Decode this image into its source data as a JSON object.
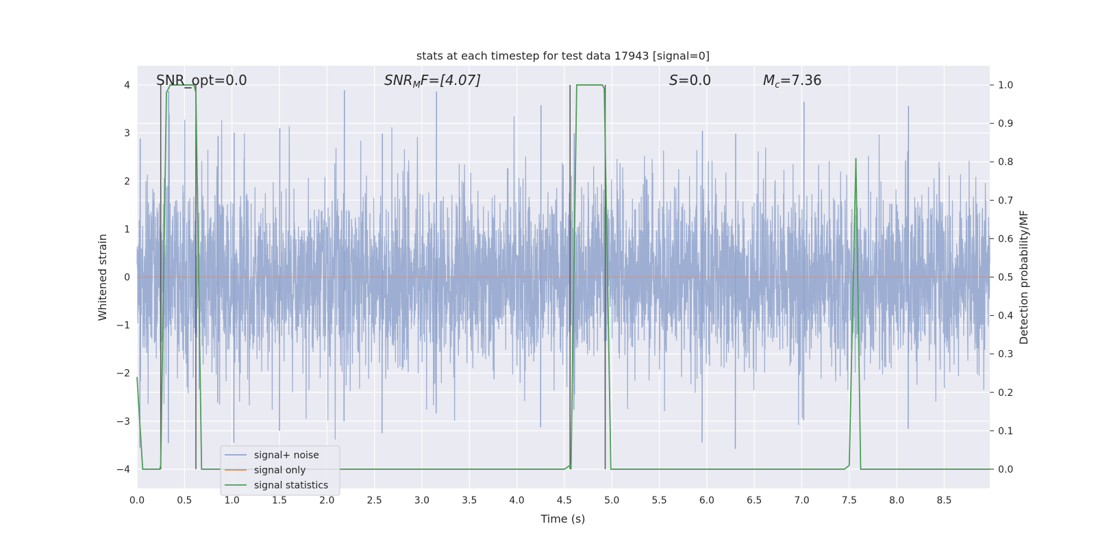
{
  "chart_data": {
    "type": "line",
    "title": "stats at each timestep for test data 17943 [signal=0]",
    "xlabel": "Time (s)",
    "ylabel_left": "Whitened strain",
    "ylabel_right": "Detection probability/MF",
    "xlim": [
      0.0,
      8.98
    ],
    "ylim_left": [
      -4.4,
      4.4
    ],
    "ylim_right": [
      -0.05,
      1.05
    ],
    "xticks": [
      0.0,
      0.5,
      1.0,
      1.5,
      2.0,
      2.5,
      3.0,
      3.5,
      4.0,
      4.5,
      5.0,
      5.5,
      6.0,
      6.5,
      7.0,
      7.5,
      8.0,
      8.5
    ],
    "xtick_labels": [
      "0.0",
      "0.5",
      "1.0",
      "1.5",
      "2.0",
      "2.5",
      "3.0",
      "3.5",
      "4.0",
      "4.5",
      "5.0",
      "5.5",
      "6.0",
      "6.5",
      "7.0",
      "7.5",
      "8.0",
      "8.5"
    ],
    "yticks_left": [
      -4,
      -3,
      -2,
      -1,
      0,
      1,
      2,
      3,
      4
    ],
    "ytick_labels_left": [
      "−4",
      "−3",
      "−2",
      "−1",
      "0",
      "1",
      "2",
      "3",
      "4"
    ],
    "yticks_right": [
      0.0,
      0.1,
      0.2,
      0.3,
      0.4,
      0.5,
      0.6,
      0.7,
      0.8,
      0.9,
      1.0
    ],
    "ytick_labels_right": [
      "0.0",
      "0.1",
      "0.2",
      "0.3",
      "0.4",
      "0.5",
      "0.6",
      "0.7",
      "0.8",
      "0.9",
      "1.0"
    ],
    "grid": true,
    "legend_position": "lower-left",
    "series": [
      {
        "name": "signal+ noise",
        "color": "#8fa3cc",
        "axis": "left",
        "description_kind": "whitened strain noise, amplitude within about ±4",
        "peak_hints_x": [
          0.03,
          0.33,
          0.85,
          1.02,
          1.5,
          2.18,
          2.58,
          3.15,
          4.25,
          4.6,
          5.95,
          6.3,
          7.02,
          8.12
        ]
      },
      {
        "name": "signal only",
        "color": "#dd8452",
        "axis": "left",
        "x": [
          0.0,
          8.98
        ],
        "y": [
          0,
          0
        ]
      },
      {
        "name": "signal statistics",
        "color": "#4d9e57",
        "axis": "right",
        "x": [
          0.0,
          0.06,
          0.24,
          0.25,
          0.31,
          0.35,
          0.6,
          0.62,
          0.68,
          4.5,
          4.56,
          4.57,
          4.63,
          4.9,
          4.92,
          4.99,
          7.45,
          7.5,
          7.57,
          7.62,
          8.98
        ],
        "y": [
          0.24,
          0.0,
          0.0,
          0.01,
          0.98,
          1.0,
          1.0,
          0.98,
          0.0,
          0.0,
          0.01,
          0.0,
          1.0,
          1.0,
          0.99,
          0.0,
          0.0,
          0.01,
          0.81,
          0.0,
          0.0
        ]
      }
    ],
    "vlines": [
      0.25,
      0.62,
      4.56,
      4.93
    ],
    "vline_color": "#555555",
    "annotations": [
      {
        "text": "SNR_opt=0.0",
        "x": 0.2
      },
      {
        "text": "SNR_MF=[4.07]",
        "x": 2.6
      },
      {
        "text": "S=0.0",
        "x": 5.6
      },
      {
        "text": "M_c=7.36",
        "x": 6.6
      }
    ],
    "annotation_display": {
      "snr_mf_name": "SNR",
      "snr_mf_sub": "M",
      "snr_mf_rest": "F=[4.07]",
      "s_name": "S",
      "s_rest": "=0.0",
      "mc_name": "M",
      "mc_sub": "c",
      "mc_rest": "=7.36"
    },
    "colors": {
      "background": "#eaeaf2",
      "grid": "#ffffff",
      "noise": "#8fa3cc",
      "signal_only": "#dd8452",
      "statistics": "#4d9e57"
    }
  }
}
